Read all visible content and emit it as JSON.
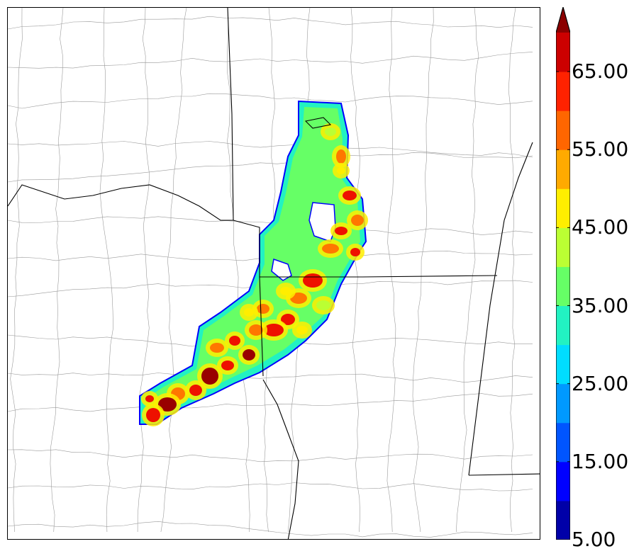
{
  "colorbar": {
    "tick_labels": [
      "5.00",
      "15.00",
      "25.00",
      "35.00",
      "45.00",
      "55.00",
      "65.00"
    ],
    "min": 5,
    "max": 70,
    "interval": 5,
    "extend": "max",
    "colors": [
      "#0000a8",
      "#0000ff",
      "#0055ff",
      "#0099ff",
      "#00ddff",
      "#22f2c2",
      "#66ff66",
      "#bbff33",
      "#ffee00",
      "#ffaa00",
      "#ff6600",
      "#ff2200",
      "#cc0000",
      "#8b0000"
    ]
  },
  "map": {
    "field_palette": {
      "edge": "#0000ff",
      "low": "#22f2c2",
      "mid": "#66ff66",
      "high": "#bbff33",
      "peak": "#ffee00",
      "core_orange": "#ff7700",
      "core_red": "#ee1100",
      "core_dark": "#990000"
    },
    "line_colors": {
      "state": "#000000",
      "county": "#9a9a9a"
    }
  }
}
